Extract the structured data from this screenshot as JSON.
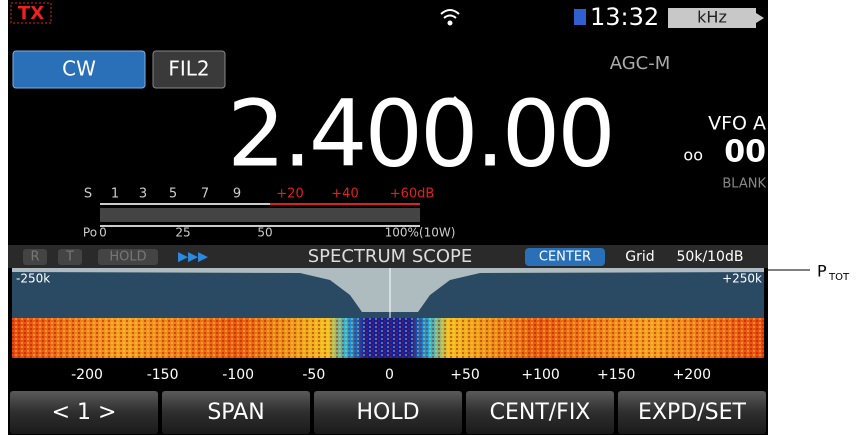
{
  "status": {
    "tx": "TX",
    "time": "13:32",
    "unit": "kHz"
  },
  "mode": "CW",
  "filter": "FIL2",
  "agc": "AGC-M",
  "frequency": "2.400.00",
  "vfo": {
    "name": "VFO A",
    "memory_prefix": "oo",
    "memory": "00",
    "memory_name": "BLANK"
  },
  "meter": {
    "s_labels": [
      "S",
      "1",
      "3",
      "5",
      "7",
      "9",
      "+20",
      "+40",
      "+60dB"
    ],
    "po_labels": [
      "Po",
      "0",
      "25",
      "50",
      "100%(10W)"
    ]
  },
  "scope": {
    "indicators": [
      "R",
      "T",
      "HOLD",
      "▶▶▶"
    ],
    "title": "SPECTRUM SCOPE",
    "mode": "CENTER",
    "grid": "Grid",
    "scale": "50k/10dB",
    "left_edge": "-250k",
    "right_edge": "+250k",
    "axis_labels": [
      "-200",
      "-150",
      "-100",
      "-50",
      "0",
      "+50",
      "+100",
      "+150",
      "+200"
    ]
  },
  "buttons": [
    "< 1 >",
    "SPAN",
    "HOLD",
    "CENT/FIX",
    "EXPD/SET"
  ],
  "annotation": {
    "main": "P",
    "sub": "TOT"
  }
}
